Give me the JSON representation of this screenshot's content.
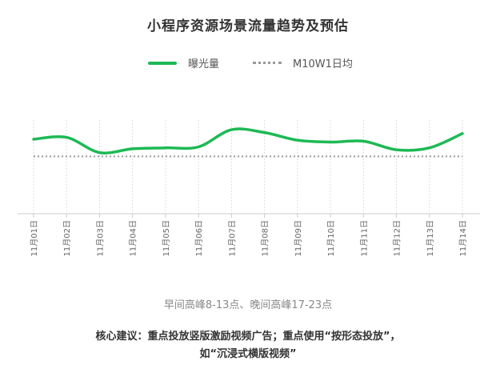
{
  "title": "小程序资源场景流量趋势及预估",
  "note": "早间高峰8-13点、晚间高峰17-23点",
  "advice": {
    "line1": "核心建议：重点投放竖版激励视频广告；重点使用“按形态投放”，",
    "line2": "如“沉浸式横版视频”"
  },
  "colors": {
    "series": "#1db954",
    "avg": "#999999",
    "axis": "#cccccc",
    "grid": "#dddddd"
  },
  "chart_data": {
    "type": "line",
    "categories": [
      "11月01日",
      "11月02日",
      "11月03日",
      "11月04日",
      "11月05日",
      "11月06日",
      "11月07日",
      "11月08日",
      "11月09日",
      "11月10日",
      "11月11日",
      "11月12日",
      "11月13日",
      "11月14日"
    ],
    "series": [
      {
        "name": "曝光量",
        "values": [
          78,
          80,
          64,
          68,
          69,
          70,
          88,
          85,
          77,
          75,
          76,
          67,
          69,
          84
        ]
      },
      {
        "name": "M10W1日均",
        "values": [
          60,
          60,
          60,
          60,
          60,
          60,
          60,
          60,
          60,
          60,
          60,
          60,
          60,
          60
        ]
      }
    ],
    "ylim": [
      0,
      140
    ],
    "grid": true,
    "legend": "top-center"
  }
}
